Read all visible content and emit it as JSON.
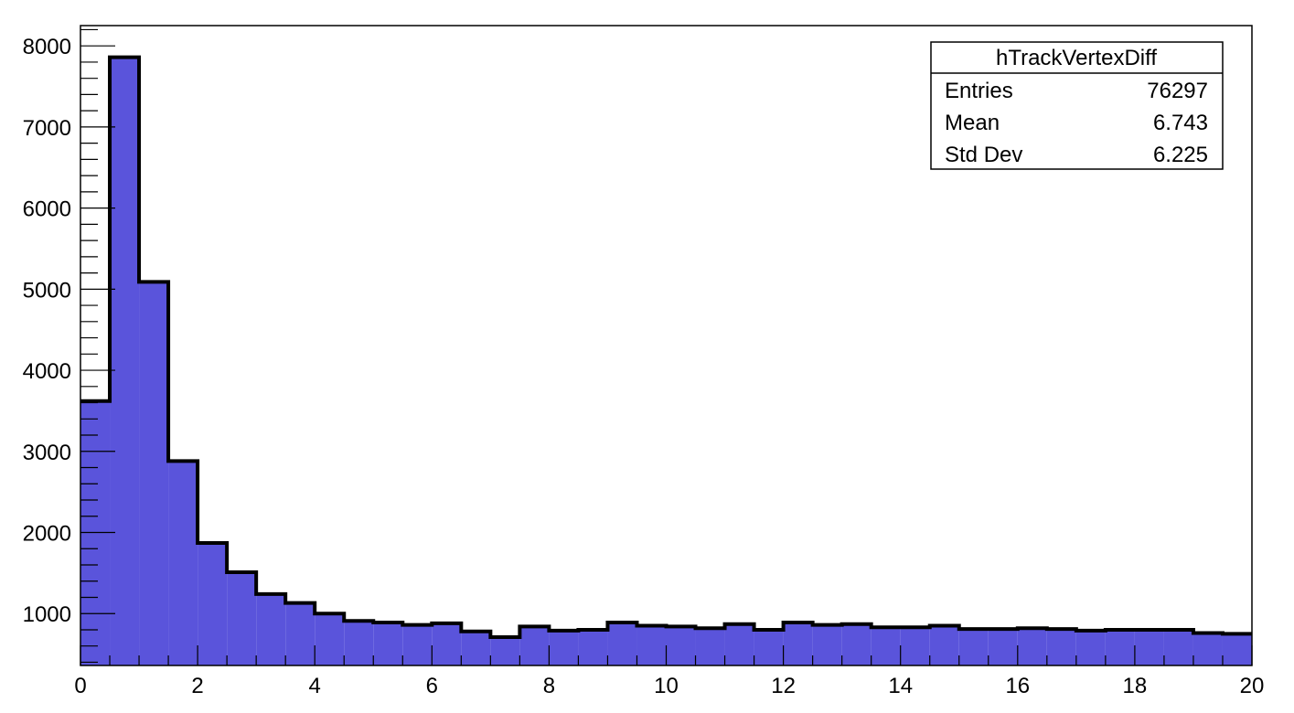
{
  "chart_data": {
    "type": "bar",
    "histogram": true,
    "fill_color": "#5A54DB",
    "line_color": "#000000",
    "xlim": [
      0,
      20
    ],
    "ylim": [
      360,
      8250
    ],
    "x_ticks": [
      "0",
      "2",
      "4",
      "6",
      "8",
      "10",
      "12",
      "14",
      "16",
      "18",
      "20"
    ],
    "y_ticks": [
      "1000",
      "2000",
      "3000",
      "4000",
      "5000",
      "6000",
      "7000",
      "8000"
    ],
    "bin_width": 0.5,
    "values": [
      3620,
      7860,
      5090,
      2880,
      1870,
      1510,
      1240,
      1130,
      1000,
      910,
      890,
      860,
      880,
      780,
      710,
      840,
      790,
      800,
      890,
      850,
      840,
      820,
      870,
      800,
      890,
      860,
      870,
      830,
      830,
      850,
      810,
      810,
      820,
      810,
      790,
      800,
      800,
      800,
      760,
      750
    ],
    "grid": false,
    "legend": "none"
  },
  "stats_box": {
    "title": "hTrackVertexDiff",
    "rows": [
      {
        "label": "Entries",
        "value": "76297"
      },
      {
        "label": "Mean",
        "value": "6.743"
      },
      {
        "label": "Std Dev",
        "value": "6.225"
      }
    ]
  }
}
